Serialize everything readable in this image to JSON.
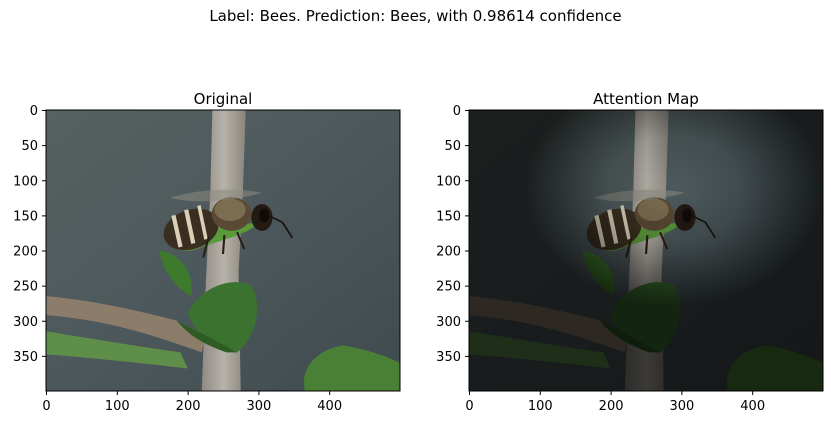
{
  "figure": {
    "suptitle": "Label: Bees. Prediction: Bees, with 0.98614 confidence"
  },
  "panels": [
    {
      "id": "original",
      "title": "Original",
      "dimmed": false,
      "x_ticks": [
        "0",
        "100",
        "200",
        "300",
        "400"
      ],
      "y_ticks": [
        "0",
        "50",
        "100",
        "150",
        "200",
        "250",
        "300",
        "350"
      ]
    },
    {
      "id": "attention",
      "title": "Attention Map",
      "dimmed": true,
      "x_ticks": [
        "0",
        "100",
        "200",
        "300",
        "400"
      ],
      "y_ticks": [
        "0",
        "50",
        "100",
        "150",
        "200",
        "250",
        "300",
        "350"
      ]
    }
  ],
  "image": {
    "width": 500,
    "height": 400,
    "subject": "honeybee on green leaf and plant stem",
    "colors": {
      "background": "#4f5b5e",
      "stem": "#a8a49c",
      "leaf": "#3f7a2c",
      "bee_body": "#3a2e20",
      "bee_stripe": "#d8d0b8"
    }
  }
}
